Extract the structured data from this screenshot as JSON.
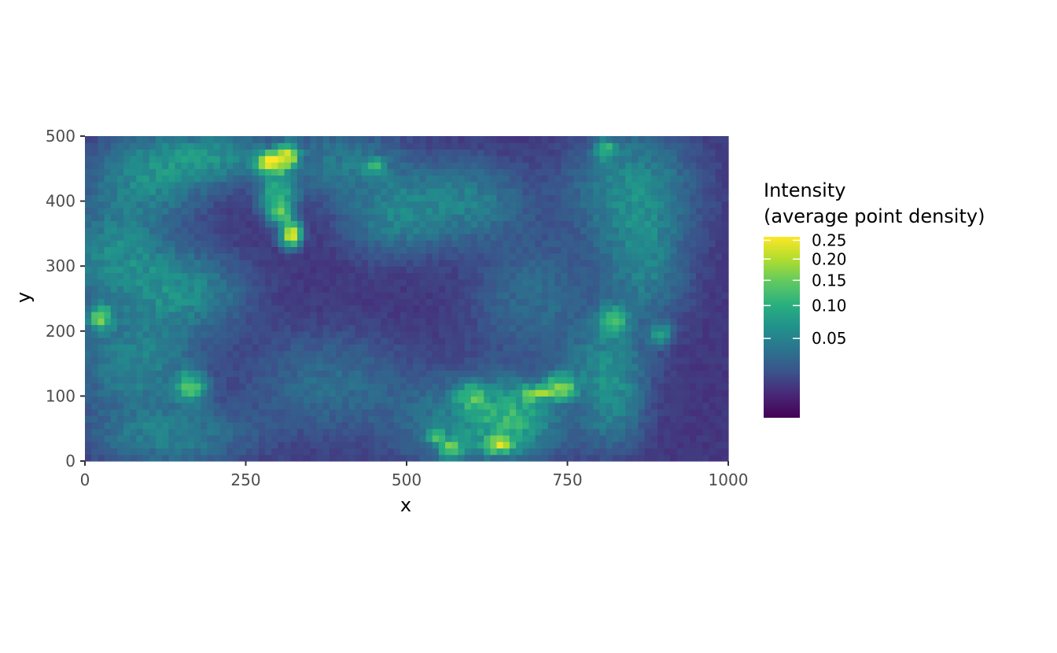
{
  "chart_data": {
    "type": "heatmap",
    "title": "",
    "xlabel": "x",
    "ylabel": "y",
    "xlim": [
      0,
      1000
    ],
    "ylim": [
      0,
      500
    ],
    "x_ticks": [
      0,
      250,
      500,
      750,
      1000
    ],
    "x_tick_labels": [
      "0",
      "250",
      "500",
      "750",
      "1000"
    ],
    "y_ticks": [
      0,
      100,
      200,
      300,
      400,
      500
    ],
    "y_tick_labels": [
      "0",
      "100",
      "200",
      "300",
      "400",
      "500"
    ],
    "grid": false,
    "colormap": "viridis",
    "colors": [
      "#440154",
      "#3b528b",
      "#21918c",
      "#5ec962",
      "#fde725"
    ],
    "legend": {
      "title_line1": "Intensity",
      "title_line2": "(average point density)",
      "placement": "right",
      "scale": "sqrt",
      "range": [
        0,
        0.26
      ],
      "breaks": [
        0.05,
        0.1,
        0.15,
        0.2,
        0.25
      ],
      "break_labels": [
        "0.05",
        "0.10",
        "0.15",
        "0.20",
        "0.25"
      ]
    },
    "grid_resolution": {
      "nx": 100,
      "ny": 50
    },
    "background_intensity": 0.008,
    "hotspots": [
      {
        "x": 290,
        "y": 460,
        "sx": 14,
        "sy": 10,
        "v": 0.26
      },
      {
        "x": 315,
        "y": 470,
        "sx": 10,
        "sy": 12,
        "v": 0.19
      },
      {
        "x": 320,
        "y": 350,
        "sx": 10,
        "sy": 12,
        "v": 0.22
      },
      {
        "x": 300,
        "y": 410,
        "sx": 18,
        "sy": 22,
        "v": 0.09
      },
      {
        "x": 305,
        "y": 380,
        "sx": 12,
        "sy": 10,
        "v": 0.1
      },
      {
        "x": 200,
        "y": 470,
        "sx": 60,
        "sy": 25,
        "v": 0.05
      },
      {
        "x": 100,
        "y": 440,
        "sx": 60,
        "sy": 40,
        "v": 0.05
      },
      {
        "x": 50,
        "y": 320,
        "sx": 55,
        "sy": 50,
        "v": 0.05
      },
      {
        "x": 150,
        "y": 260,
        "sx": 60,
        "sy": 40,
        "v": 0.05
      },
      {
        "x": 25,
        "y": 220,
        "sx": 12,
        "sy": 12,
        "v": 0.13
      },
      {
        "x": 80,
        "y": 150,
        "sx": 60,
        "sy": 50,
        "v": 0.045
      },
      {
        "x": 165,
        "y": 115,
        "sx": 15,
        "sy": 15,
        "v": 0.11
      },
      {
        "x": 130,
        "y": 40,
        "sx": 80,
        "sy": 30,
        "v": 0.04
      },
      {
        "x": 400,
        "y": 460,
        "sx": 60,
        "sy": 35,
        "v": 0.035
      },
      {
        "x": 450,
        "y": 455,
        "sx": 10,
        "sy": 8,
        "v": 0.08
      },
      {
        "x": 480,
        "y": 380,
        "sx": 50,
        "sy": 40,
        "v": 0.04
      },
      {
        "x": 590,
        "y": 400,
        "sx": 60,
        "sy": 40,
        "v": 0.04
      },
      {
        "x": 570,
        "y": 20,
        "sx": 12,
        "sy": 10,
        "v": 0.12
      },
      {
        "x": 545,
        "y": 40,
        "sx": 10,
        "sy": 8,
        "v": 0.09
      },
      {
        "x": 600,
        "y": 100,
        "sx": 15,
        "sy": 12,
        "v": 0.09
      },
      {
        "x": 645,
        "y": 25,
        "sx": 15,
        "sy": 8,
        "v": 0.15
      },
      {
        "x": 660,
        "y": 70,
        "sx": 40,
        "sy": 30,
        "v": 0.06
      },
      {
        "x": 740,
        "y": 115,
        "sx": 15,
        "sy": 12,
        "v": 0.14
      },
      {
        "x": 705,
        "y": 105,
        "sx": 20,
        "sy": 8,
        "v": 0.11
      },
      {
        "x": 620,
        "y": 60,
        "sx": 80,
        "sy": 45,
        "v": 0.05
      },
      {
        "x": 820,
        "y": 215,
        "sx": 15,
        "sy": 15,
        "v": 0.12
      },
      {
        "x": 895,
        "y": 195,
        "sx": 10,
        "sy": 10,
        "v": 0.08
      },
      {
        "x": 810,
        "y": 150,
        "sx": 40,
        "sy": 40,
        "v": 0.045
      },
      {
        "x": 810,
        "y": 480,
        "sx": 10,
        "sy": 10,
        "v": 0.08
      },
      {
        "x": 850,
        "y": 420,
        "sx": 60,
        "sy": 60,
        "v": 0.05
      },
      {
        "x": 870,
        "y": 300,
        "sx": 40,
        "sy": 60,
        "v": 0.04
      },
      {
        "x": 820,
        "y": 80,
        "sx": 30,
        "sy": 40,
        "v": 0.04
      },
      {
        "x": 700,
        "y": 250,
        "sx": 60,
        "sy": 60,
        "v": 0.025
      },
      {
        "x": 380,
        "y": 120,
        "sx": 80,
        "sy": 50,
        "v": 0.025
      }
    ]
  }
}
